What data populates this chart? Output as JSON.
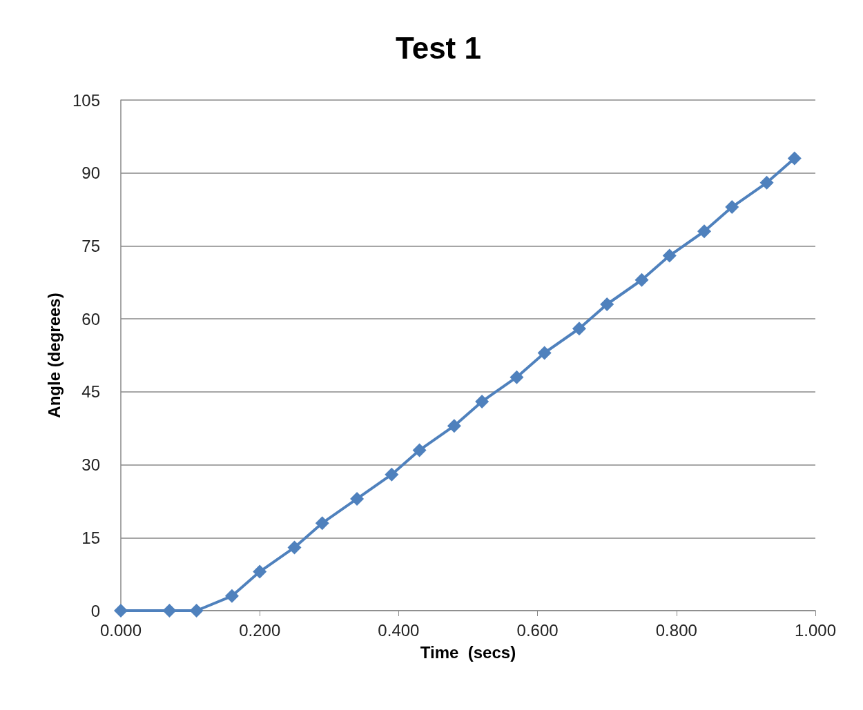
{
  "chart_data": {
    "type": "line",
    "title": "Test 1",
    "xlabel": "Time  (secs)",
    "ylabel": "Angle (degrees)",
    "x": [
      0.0,
      0.07,
      0.109,
      0.16,
      0.2,
      0.25,
      0.29,
      0.34,
      0.39,
      0.43,
      0.48,
      0.52,
      0.57,
      0.61,
      0.66,
      0.7,
      0.75,
      0.79,
      0.84,
      0.88,
      0.93,
      0.97
    ],
    "series": [
      {
        "color": "#4f81bd",
        "values": [
          0,
          0,
          0,
          3,
          8,
          13,
          18,
          23,
          28,
          33,
          38,
          43,
          48,
          53,
          58,
          63,
          68,
          73,
          78,
          83,
          88,
          93
        ]
      }
    ],
    "xlim": [
      0,
      1
    ],
    "xticks": [
      {
        "value": 0,
        "label": "0.000"
      },
      {
        "value": 0.2,
        "label": "0.200"
      },
      {
        "value": 0.4,
        "label": "0.400"
      },
      {
        "value": 0.6,
        "label": "0.600"
      },
      {
        "value": 0.8,
        "label": "0.800"
      },
      {
        "value": 1,
        "label": "1.000"
      }
    ],
    "ylim": [
      0,
      105
    ],
    "yticks": [
      0,
      15,
      30,
      45,
      60,
      75,
      90,
      105
    ],
    "grid": "y",
    "marker": "diamond",
    "line_style": "solid"
  }
}
